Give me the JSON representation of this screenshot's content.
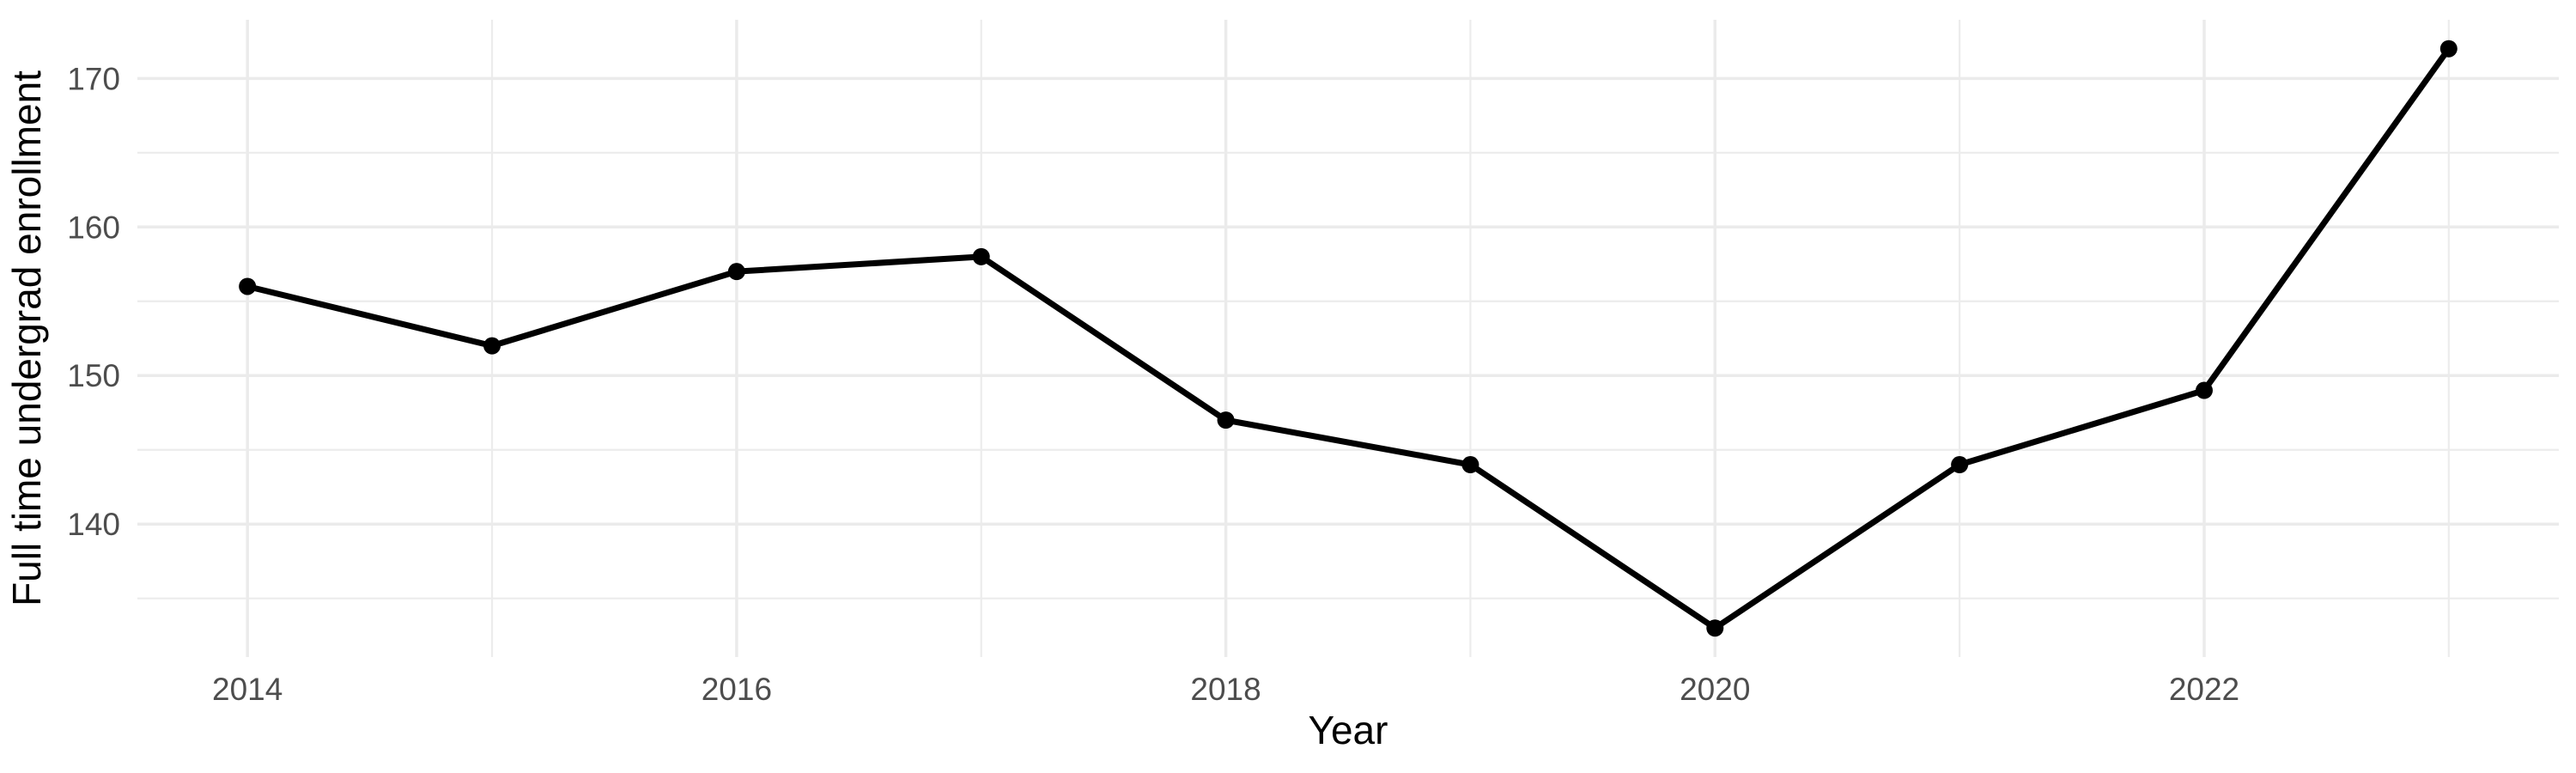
{
  "chart_data": {
    "type": "line",
    "title": "",
    "xlabel": "Year",
    "ylabel": "Full time undergrad enrollment",
    "x": [
      2014,
      2015,
      2016,
      2017,
      2018,
      2019,
      2020,
      2021,
      2022,
      2023
    ],
    "values": [
      156,
      152,
      157,
      158,
      147,
      144,
      133,
      144,
      149,
      172
    ],
    "series_name": "Full time undergrad enrollment by year",
    "xlim": [
      2013.55,
      2023.45
    ],
    "ylim": [
      131.05,
      173.95
    ],
    "x_major_ticks": [
      2014,
      2016,
      2018,
      2020,
      2022
    ],
    "x_major_tick_labels": [
      "2014",
      "2016",
      "2018",
      "2020",
      "2022"
    ],
    "x_minor_ticks": [
      2015,
      2017,
      2019,
      2021,
      2023
    ],
    "y_major_ticks": [
      140,
      150,
      160,
      170
    ],
    "y_major_tick_labels": [
      "140",
      "150",
      "160",
      "170"
    ],
    "y_minor_ticks": [
      135,
      145,
      155,
      165
    ],
    "grid": "on",
    "legend": "none",
    "colors": {
      "background": "#FFFFFF",
      "grid_major": "#EBEBEB",
      "grid_minor": "#ECECEC",
      "line": "#000000",
      "point": "#000000",
      "tick_label": "#4D4D4D",
      "axis_title": "#000000"
    }
  }
}
